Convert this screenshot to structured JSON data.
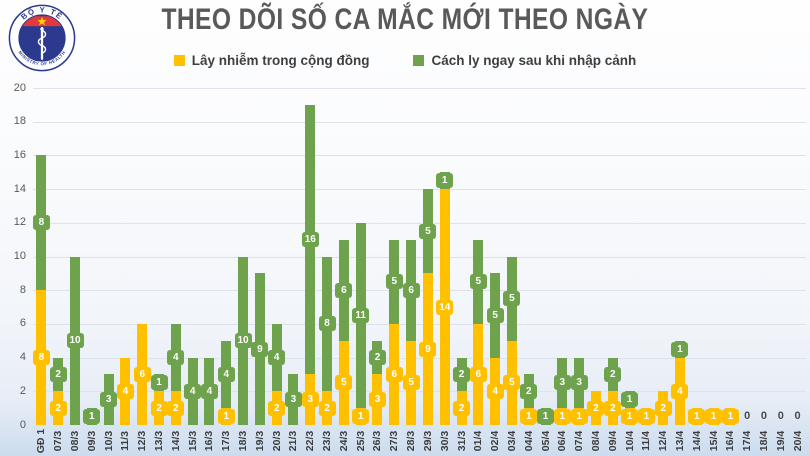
{
  "header": {
    "title": "THEO DÕI SỐ CA MẮC MỚI THEO NGÀY",
    "logo": {
      "top_text": "BỘ Y TẾ",
      "bottom_text": "MINISTRY OF HEALTH"
    }
  },
  "legend": [
    {
      "label": "Lây nhiễm trong cộng đồng",
      "color": "#FFC000"
    },
    {
      "label": "Cách ly ngay sau khi nhập cảnh",
      "color": "#6FA24C"
    }
  ],
  "chart_data": {
    "type": "bar",
    "stacked": true,
    "title": "THEO DÕI SỐ CA MẮC MỚI THEO NGÀY",
    "xlabel": "",
    "ylabel": "",
    "ylim": [
      0,
      20
    ],
    "ytick_step": 2,
    "grid": true,
    "legend_position": "top",
    "data_labels": true,
    "zero_label": "0",
    "categories": [
      "GĐ 1",
      "07/3",
      "08/3",
      "09/3",
      "10/3",
      "11/3",
      "12/3",
      "13/3",
      "14/3",
      "15/3",
      "16/3",
      "17/3",
      "18/3",
      "19/3",
      "20/3",
      "21/3",
      "22/3",
      "23/3",
      "24/3",
      "25/3",
      "26/3",
      "27/3",
      "28/3",
      "29/3",
      "30/3",
      "31/3",
      "01/4",
      "02/4",
      "03/4",
      "04/4",
      "05/4",
      "06/4",
      "07/4",
      "08/4",
      "09/4",
      "10/4",
      "11/4",
      "12/4",
      "13/4",
      "14/4",
      "15/4",
      "16/4",
      "17/4",
      "18/4",
      "19/4",
      "20/4"
    ],
    "series": [
      {
        "name": "Lây nhiễm trong cộng đồng",
        "color": "#FFC000",
        "values": [
          8,
          2,
          0,
          0,
          0,
          4,
          6,
          2,
          2,
          0,
          0,
          1,
          0,
          0,
          2,
          0,
          3,
          2,
          5,
          1,
          3,
          6,
          5,
          9,
          14,
          2,
          6,
          4,
          5,
          1,
          0,
          1,
          1,
          2,
          2,
          1,
          1,
          2,
          4,
          1,
          1,
          1,
          0,
          0,
          0,
          0
        ]
      },
      {
        "name": "Cách ly ngay sau khi nhập cảnh",
        "color": "#6FA24C",
        "values": [
          8,
          2,
          10,
          1,
          3,
          0,
          0,
          1,
          4,
          4,
          4,
          4,
          10,
          9,
          4,
          3,
          16,
          8,
          6,
          11,
          2,
          5,
          6,
          5,
          1,
          2,
          5,
          5,
          5,
          2,
          1,
          3,
          3,
          0,
          2,
          1,
          0,
          0,
          1,
          0,
          0,
          0,
          0,
          0,
          0,
          0
        ]
      }
    ]
  },
  "style_colors": {
    "title_text": "#595959",
    "axis_text": "#595959",
    "x_axis_text": "#3d3d3d",
    "gridline": "#dde2ec",
    "background_bottom": "#cbdcee",
    "logo_navy": "#2b3a8f",
    "logo_red": "#e03a3e",
    "logo_star_yellow": "#ffd200"
  }
}
